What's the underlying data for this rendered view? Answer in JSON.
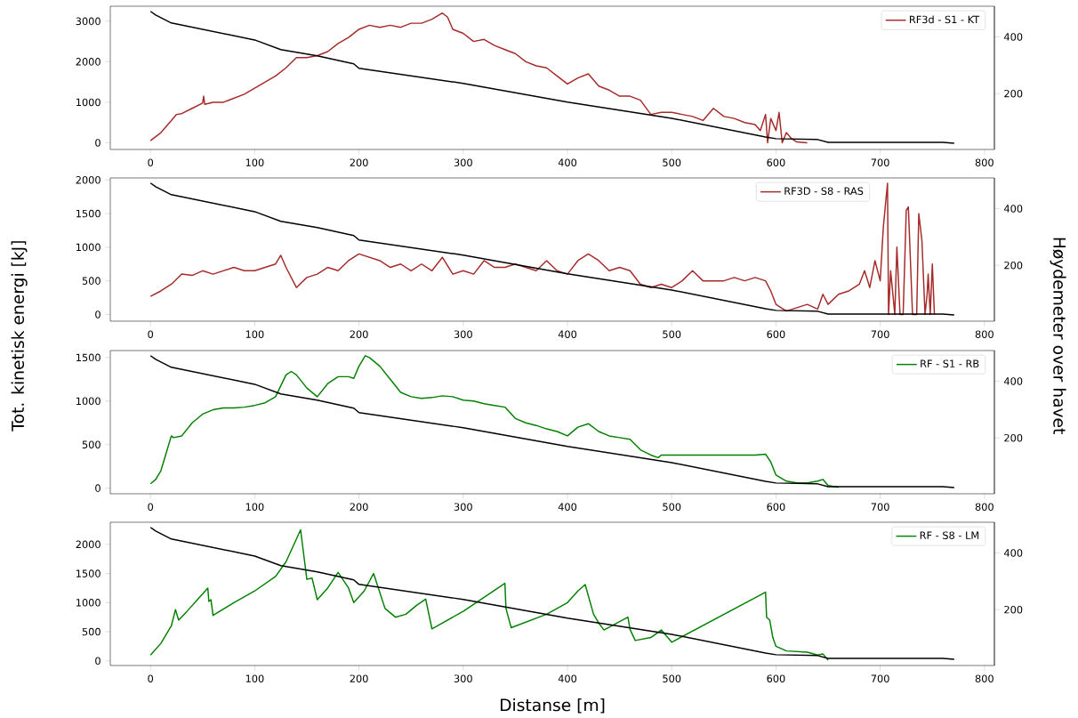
{
  "chart_data": [
    {
      "type": "line",
      "xlim": [
        -38.55,
        809.55
      ],
      "ylim": [
        -165,
        3370
      ],
      "y2lim": [
        3,
        508
      ],
      "xticks": [
        0,
        100,
        200,
        300,
        400,
        500,
        600,
        700,
        800
      ],
      "yticks": [
        0,
        1000,
        2000,
        3000
      ],
      "y2ticks": [
        200,
        400
      ],
      "legend": "top right",
      "series": [
        {
          "name": "RF3d - S1 - KT",
          "color": "#a52a2a",
          "x": [
            0,
            5,
            10,
            15,
            20,
            25,
            30,
            40,
            50,
            51,
            52,
            60,
            70,
            80,
            90,
            100,
            110,
            120,
            130,
            140,
            150,
            160,
            170,
            180,
            190,
            200,
            210,
            220,
            230,
            240,
            250,
            260,
            270,
            280,
            285,
            290,
            300,
            310,
            320,
            330,
            340,
            350,
            360,
            370,
            380,
            390,
            400,
            410,
            420,
            430,
            440,
            450,
            460,
            470,
            480,
            490,
            500,
            510,
            520,
            530,
            540,
            550,
            560,
            570,
            580,
            585,
            590,
            592,
            595,
            600,
            603,
            606,
            610,
            615,
            620,
            630
          ],
          "values": [
            50,
            150,
            250,
            400,
            550,
            700,
            720,
            850,
            980,
            1150,
            950,
            1000,
            1000,
            1100,
            1200,
            1350,
            1500,
            1650,
            1850,
            2100,
            2100,
            2150,
            2250,
            2450,
            2600,
            2800,
            2900,
            2850,
            2900,
            2850,
            2950,
            2950,
            3050,
            3200,
            3100,
            2800,
            2700,
            2500,
            2550,
            2400,
            2300,
            2200,
            2000,
            1900,
            1850,
            1650,
            1450,
            1600,
            1700,
            1400,
            1300,
            1150,
            1150,
            1050,
            700,
            750,
            750,
            700,
            650,
            550,
            850,
            650,
            600,
            500,
            450,
            300,
            700,
            0,
            600,
            300,
            750,
            0,
            250,
            100,
            20,
            0
          ]
        },
        {
          "color": "#000000",
          "axis": "y2",
          "x": [
            0,
            5,
            20,
            100,
            125,
            130,
            160,
            195,
            200,
            300,
            400,
            500,
            590,
            600,
            640,
            650,
            760,
            771
          ],
          "values": [
            490,
            477,
            449,
            389,
            355,
            352,
            333,
            305,
            289,
            236,
            170,
            113,
            47,
            41,
            38,
            28,
            28,
            25
          ]
        }
      ]
    },
    {
      "type": "line",
      "xlim": [
        -38.55,
        809.55
      ],
      "ylim": [
        -100,
        2030
      ],
      "y2lim": [
        3,
        508
      ],
      "xticks": [
        0,
        100,
        200,
        300,
        400,
        500,
        600,
        700,
        800
      ],
      "yticks": [
        0,
        500,
        1000,
        1500,
        2000
      ],
      "y2ticks": [
        200,
        400
      ],
      "legend": "top right",
      "ylabel": "Tot. kinetisk energi [kJ]",
      "y2label": "Høydemeter over havet",
      "series": [
        {
          "name": "RF3D - S8 - RAS",
          "color": "#a52a2a",
          "x": [
            0,
            10,
            20,
            30,
            40,
            50,
            60,
            70,
            80,
            90,
            100,
            110,
            120,
            125,
            130,
            140,
            150,
            160,
            170,
            180,
            190,
            200,
            210,
            220,
            230,
            240,
            250,
            260,
            270,
            280,
            290,
            300,
            310,
            320,
            330,
            340,
            350,
            360,
            370,
            380,
            390,
            400,
            410,
            420,
            430,
            440,
            450,
            460,
            470,
            480,
            490,
            500,
            510,
            520,
            530,
            540,
            550,
            560,
            570,
            580,
            590,
            595,
            600,
            610,
            620,
            630,
            640,
            645,
            650,
            660,
            670,
            680,
            685,
            690,
            695,
            700,
            703,
            707,
            708,
            710,
            714,
            716,
            719,
            722,
            725,
            727,
            731,
            735,
            737,
            740,
            743,
            745,
            746,
            748,
            750,
            752
          ],
          "values": [
            270,
            350,
            450,
            600,
            580,
            650,
            600,
            650,
            700,
            650,
            650,
            700,
            750,
            880,
            700,
            400,
            550,
            600,
            700,
            650,
            800,
            900,
            850,
            800,
            700,
            750,
            650,
            750,
            650,
            850,
            600,
            650,
            600,
            800,
            700,
            700,
            750,
            700,
            650,
            800,
            650,
            600,
            800,
            900,
            800,
            650,
            700,
            650,
            450,
            400,
            450,
            400,
            500,
            650,
            500,
            500,
            500,
            550,
            500,
            550,
            500,
            350,
            150,
            50,
            100,
            150,
            80,
            300,
            150,
            300,
            350,
            450,
            650,
            400,
            800,
            500,
            1300,
            1950,
            0,
            650,
            0,
            1000,
            0,
            0,
            1550,
            1600,
            0,
            0,
            1500,
            1100,
            0,
            300,
            600,
            0,
            750,
            0
          ]
        },
        {
          "color": "#000000",
          "axis": "y2",
          "x": [
            0,
            5,
            20,
            100,
            125,
            130,
            160,
            195,
            200,
            300,
            400,
            500,
            590,
            600,
            640,
            650,
            760,
            771
          ],
          "values": [
            490,
            477,
            449,
            389,
            355,
            352,
            333,
            305,
            289,
            236,
            170,
            113,
            47,
            41,
            38,
            28,
            28,
            25
          ]
        }
      ]
    },
    {
      "type": "line",
      "xlim": [
        -38.55,
        809.55
      ],
      "ylim": [
        -65,
        1580
      ],
      "y2lim": [
        3,
        508
      ],
      "xticks": [
        0,
        100,
        200,
        300,
        400,
        500,
        600,
        700,
        800
      ],
      "yticks": [
        0,
        500,
        1000,
        1500
      ],
      "y2ticks": [
        200,
        400
      ],
      "legend": "top right",
      "series": [
        {
          "name": "RF - S1 - RB",
          "color": "#008000",
          "x": [
            0,
            5,
            10,
            15,
            20,
            22,
            30,
            40,
            50,
            60,
            70,
            80,
            90,
            100,
            110,
            120,
            130,
            135,
            140,
            150,
            160,
            170,
            180,
            190,
            195,
            200,
            206,
            210,
            220,
            230,
            240,
            250,
            260,
            270,
            280,
            290,
            300,
            310,
            320,
            330,
            340,
            350,
            360,
            370,
            380,
            390,
            400,
            410,
            420,
            430,
            440,
            450,
            460,
            470,
            480,
            487,
            490,
            500,
            520,
            540,
            560,
            580,
            590,
            595,
            600,
            610,
            620,
            630,
            640,
            645,
            650,
            660
          ],
          "values": [
            50,
            100,
            200,
            400,
            600,
            580,
            600,
            750,
            850,
            900,
            920,
            920,
            930,
            950,
            980,
            1050,
            1300,
            1340,
            1300,
            1150,
            1050,
            1200,
            1280,
            1280,
            1260,
            1400,
            1520,
            1500,
            1400,
            1250,
            1100,
            1050,
            1030,
            1040,
            1060,
            1050,
            1010,
            1000,
            970,
            950,
            930,
            800,
            750,
            720,
            680,
            650,
            600,
            700,
            740,
            650,
            600,
            580,
            560,
            440,
            380,
            350,
            380,
            380,
            380,
            380,
            380,
            380,
            390,
            300,
            150,
            80,
            60,
            60,
            80,
            100,
            30,
            10
          ]
        },
        {
          "color": "#000000",
          "axis": "y2",
          "x": [
            0,
            5,
            20,
            100,
            125,
            130,
            160,
            195,
            200,
            300,
            400,
            500,
            590,
            600,
            640,
            650,
            760,
            771
          ],
          "values": [
            490,
            477,
            449,
            389,
            355,
            352,
            333,
            305,
            289,
            236,
            170,
            113,
            47,
            41,
            38,
            28,
            28,
            25
          ]
        }
      ]
    },
    {
      "type": "line",
      "xlim": [
        -38.55,
        809.55
      ],
      "ylim": [
        -80,
        2380
      ],
      "y2lim": [
        3,
        508
      ],
      "xticks": [
        0,
        100,
        200,
        300,
        400,
        500,
        600,
        700,
        800
      ],
      "yticks": [
        0,
        500,
        1000,
        1500,
        2000
      ],
      "y2ticks": [
        200,
        400
      ],
      "legend": "top right",
      "xlabel": "Distanse [m]",
      "series": [
        {
          "name": "RF - S8 - LM",
          "color": "#008000",
          "x": [
            0,
            10,
            20,
            24,
            27,
            35,
            45,
            55,
            56,
            58,
            60,
            80,
            100,
            120,
            130,
            144,
            150,
            155,
            160,
            170,
            180,
            190,
            195,
            205,
            214,
            225,
            235,
            245,
            255,
            264,
            270,
            300,
            340,
            341,
            346,
            380,
            400,
            410,
            417,
            425,
            430,
            435,
            458,
            460,
            465,
            480,
            490,
            500,
            590,
            591,
            594,
            597,
            600,
            610,
            620,
            630,
            640,
            645,
            650
          ],
          "values": [
            100,
            300,
            600,
            880,
            700,
            850,
            1050,
            1250,
            1020,
            1050,
            780,
            1000,
            1200,
            1450,
            1700,
            2250,
            1400,
            1420,
            1050,
            1250,
            1520,
            1250,
            1000,
            1200,
            1500,
            900,
            750,
            800,
            950,
            1060,
            550,
            850,
            1330,
            900,
            570,
            800,
            1000,
            1200,
            1310,
            800,
            650,
            530,
            750,
            540,
            350,
            400,
            530,
            320,
            1180,
            750,
            700,
            400,
            250,
            170,
            160,
            150,
            100,
            120,
            10
          ]
        },
        {
          "color": "#000000",
          "axis": "y2",
          "x": [
            0,
            5,
            20,
            100,
            125,
            130,
            160,
            195,
            200,
            300,
            400,
            500,
            590,
            600,
            640,
            650,
            760,
            771
          ],
          "values": [
            490,
            477,
            449,
            389,
            355,
            352,
            333,
            305,
            289,
            236,
            170,
            113,
            47,
            41,
            38,
            28,
            28,
            25
          ]
        }
      ]
    }
  ]
}
